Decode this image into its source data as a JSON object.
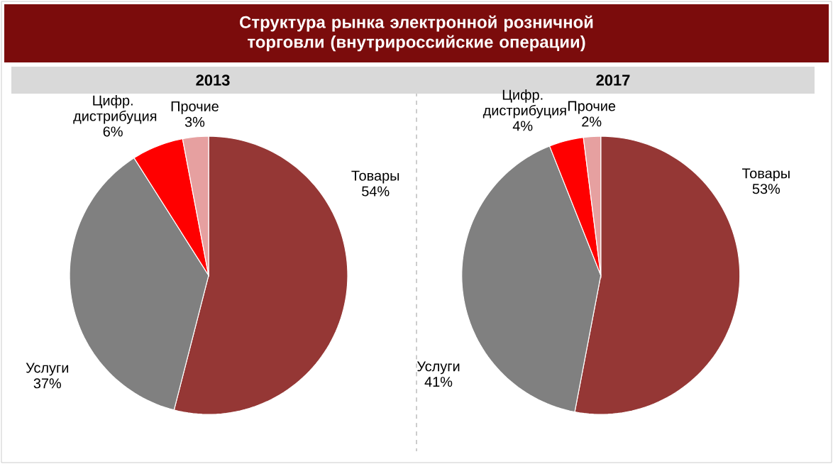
{
  "chart_data": [
    {
      "type": "pie",
      "title": "Структура рынка электронной розничной торговли (внутрироссийские операции)",
      "subtitle": "2013",
      "categories": [
        "Товары",
        "Услуги",
        "Цифр. дистрибуция",
        "Прочие"
      ],
      "values": [
        54,
        37,
        6,
        3
      ],
      "value_labels": [
        "54%",
        "37%",
        "6%",
        "3%"
      ],
      "colors": [
        "#953735",
        "#808080",
        "#ff0000",
        "#e6a0a0"
      ]
    },
    {
      "type": "pie",
      "title": "2017",
      "categories": [
        "Товары",
        "Услуги",
        "Цифр. дистрибуция",
        "Прочие"
      ],
      "values": [
        53,
        41,
        4,
        2
      ],
      "value_labels": [
        "53%",
        "41%",
        "4%",
        "2%"
      ],
      "colors": [
        "#953735",
        "#808080",
        "#ff0000",
        "#e6a0a0"
      ]
    }
  ]
}
